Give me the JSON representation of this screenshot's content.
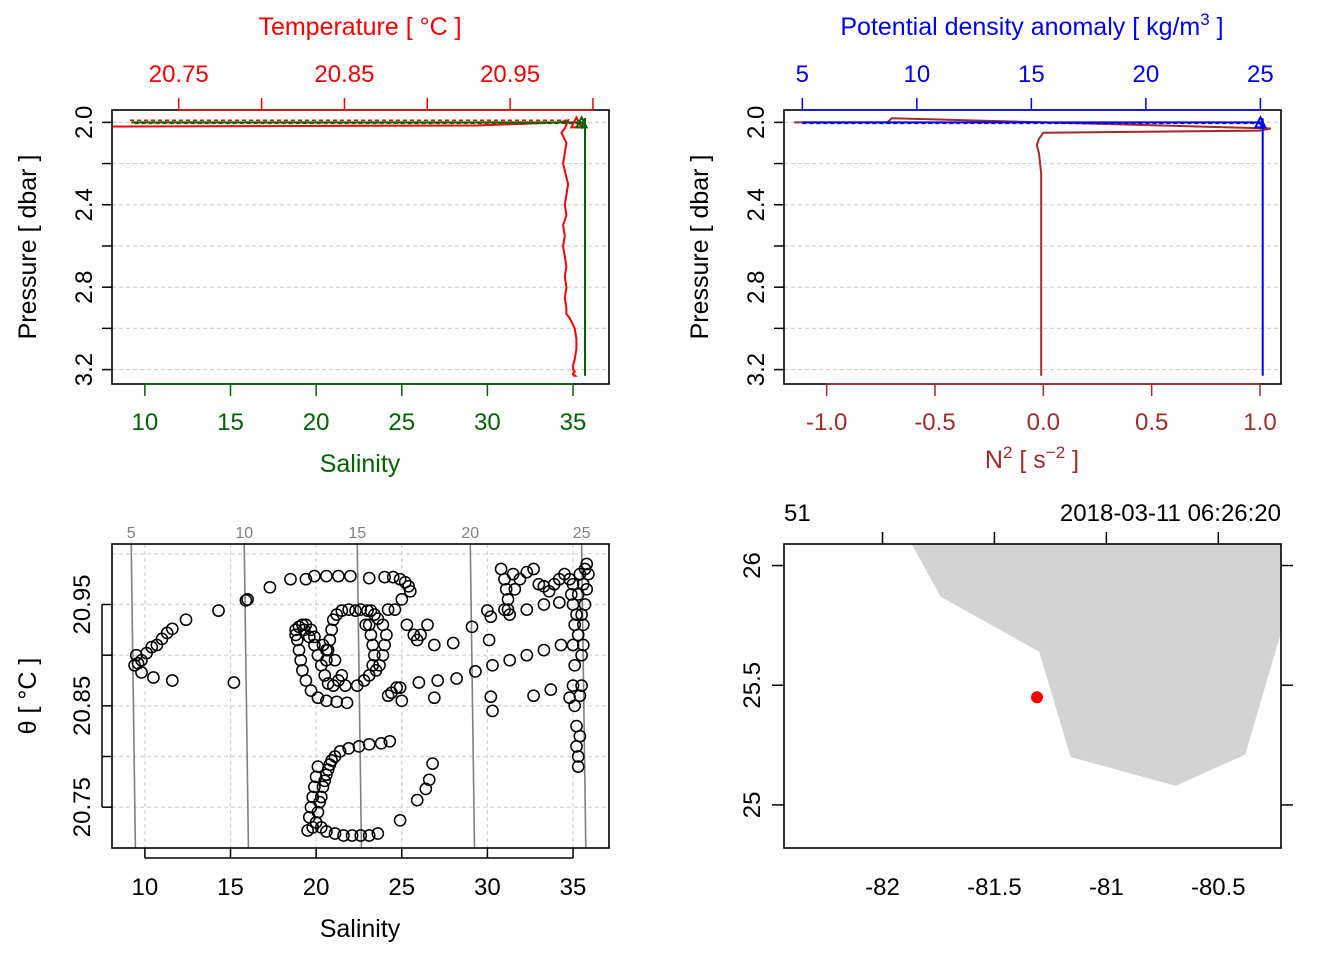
{
  "colors": {
    "temperature": "#ff0000",
    "salinity": "#006400",
    "density": "#0000ff",
    "n2": "#a52a2a",
    "grid": "#d3d3d3",
    "isopycnal": "#808080",
    "land": "#d3d3d3",
    "station": "#ff0000",
    "axis": "#000000"
  },
  "chart_data": [
    {
      "id": "ts_profile",
      "type": "line",
      "top_title": "Temperature [ °C ]",
      "top_ticks": [
        "20.75",
        "20.85",
        "20.95"
      ],
      "top_tick_values": [
        20.75,
        20.8,
        20.85,
        20.9,
        20.95,
        21.0
      ],
      "top_range": [
        20.7097,
        21.0097
      ],
      "ylabel": "Pressure [ dbar ]",
      "yticks": [
        "2.0",
        "2.4",
        "2.8",
        "3.2"
      ],
      "ytick_values": [
        2.0,
        2.4,
        2.8,
        3.2
      ],
      "ylim": [
        1.94,
        3.27
      ],
      "bottom_ticks": [
        "10",
        "15",
        "20",
        "25",
        "30",
        "35"
      ],
      "bottom_tick_values": [
        10,
        15,
        20,
        25,
        30,
        35
      ],
      "xlim_salinity": [
        8.08,
        37.1
      ],
      "xlabel": "Salinity",
      "series": [
        {
          "name": "Temperature",
          "x": [
            20.71,
            20.93,
            20.98,
            20.985,
            20.983,
            20.981,
            20.984,
            20.982,
            20.985,
            20.983,
            20.984,
            20.982,
            20.983,
            20.982,
            20.983,
            20.984,
            20.983,
            20.984,
            20.983,
            20.984,
            20.984,
            20.986,
            20.989,
            20.99,
            20.99,
            20.989,
            20.988,
            20.988,
            20.989,
            20.988,
            20.988,
            20.989,
            20.988,
            20.99
          ],
          "y": [
            2.02,
            2.015,
            2.0,
            1.99,
            2.03,
            2.05,
            2.1,
            2.2,
            2.3,
            2.4,
            2.45,
            2.5,
            2.55,
            2.6,
            2.65,
            2.7,
            2.75,
            2.8,
            2.85,
            2.9,
            2.93,
            2.95,
            3.0,
            3.05,
            3.1,
            3.15,
            3.18,
            3.2,
            3.21,
            3.22,
            3.225,
            3.23,
            3.23,
            3.23
          ]
        },
        {
          "name": "Salinity",
          "x": [
            9.2,
            35.5,
            35.4,
            35.6,
            35.5,
            35.7,
            35.7,
            35.7,
            35.7,
            35.7
          ],
          "y": [
            2.0,
            2.0,
            2.01,
            2.02,
            2.03,
            1.98,
            2.1,
            2.5,
            3.0,
            3.23
          ]
        }
      ]
    },
    {
      "id": "density_n2_profile",
      "type": "line",
      "top_title": "Potential density anomaly [ kg/m",
      "top_title_sup": "3",
      "top_title_end": " ]",
      "top_ticks": [
        "5",
        "10",
        "15",
        "20",
        "25"
      ],
      "top_tick_values": [
        5,
        10,
        15,
        20,
        25
      ],
      "top_range": [
        4.2,
        25.9
      ],
      "ylabel": "Pressure [ dbar ]",
      "yticks": [
        "2.0",
        "2.4",
        "2.8",
        "3.2"
      ],
      "ytick_values": [
        2.0,
        2.4,
        2.8,
        3.2
      ],
      "ylim": [
        1.94,
        3.27
      ],
      "bottom_ticks": [
        "-1.0",
        "-0.5",
        "0.0",
        "0.5",
        "1.0"
      ],
      "bottom_tick_values": [
        -1.0,
        -0.5,
        0.0,
        0.5,
        1.0
      ],
      "xlim_n2": [
        -1.197,
        1.097
      ],
      "xlabel_main": "N",
      "xlabel_sup": "2",
      "xlabel_unit": " [ s",
      "xlabel_unit_sup": "−2",
      "xlabel_end": " ]",
      "series": [
        {
          "name": "N2",
          "x": [
            -1.15,
            -0.72,
            -0.7,
            1.05,
            1.0,
            0.0,
            -0.02,
            -0.03,
            -0.02,
            -0.015,
            -0.01,
            -0.01,
            -0.01,
            -0.01
          ],
          "y": [
            2.0,
            2.0,
            1.98,
            2.03,
            2.04,
            2.05,
            2.08,
            2.11,
            2.15,
            2.2,
            2.25,
            2.5,
            3.0,
            3.23
          ]
        },
        {
          "name": "Potential density anomaly",
          "x": [
            5.0,
            25.0,
            25.0,
            25.1,
            25.05,
            25.1,
            25.1,
            25.1,
            25.1
          ],
          "y": [
            2.0,
            2.0,
            2.01,
            2.02,
            2.03,
            1.98,
            2.4,
            2.8,
            3.23
          ]
        }
      ]
    },
    {
      "id": "ts_diagram",
      "type": "scatter",
      "ylabel": "θ [ °C ]",
      "yticks": [
        "20.75",
        "20.85",
        "20.95"
      ],
      "ytick_values": [
        20.75,
        20.85,
        20.95
      ],
      "ylim": [
        20.7097,
        21.0097
      ],
      "xlabel": "Salinity",
      "xticks": [
        "10",
        "15",
        "20",
        "25",
        "30",
        "35"
      ],
      "xtick_values": [
        10,
        15,
        20,
        25,
        30,
        35
      ],
      "xlim": [
        8.08,
        37.1
      ],
      "isopycnal_labels": [
        "5",
        "10",
        "15",
        "20",
        "25"
      ],
      "isopycnal_values": [
        5,
        10,
        15,
        20,
        25
      ],
      "isopycnal_slope": 0.082,
      "isopycnal_salinity_at_top": [
        9.2,
        15.8,
        22.4,
        29.0,
        35.5
      ],
      "points": [
        [
          9.4,
          20.89
        ],
        [
          9.5,
          20.9
        ],
        [
          9.6,
          20.892
        ],
        [
          9.8,
          20.895
        ],
        [
          10.1,
          20.902
        ],
        [
          10.4,
          20.908
        ],
        [
          10.7,
          20.91
        ],
        [
          11.0,
          20.916
        ],
        [
          11.3,
          20.922
        ],
        [
          11.6,
          20.926
        ],
        [
          12.4,
          20.935
        ],
        [
          14.3,
          20.944
        ],
        [
          15.9,
          20.954
        ],
        [
          16.0,
          20.955
        ],
        [
          17.3,
          20.967
        ],
        [
          18.5,
          20.975
        ],
        [
          9.8,
          20.883
        ],
        [
          10.5,
          20.878
        ],
        [
          11.6,
          20.875
        ],
        [
          15.2,
          20.873
        ],
        [
          18.8,
          20.92
        ],
        [
          18.9,
          20.915
        ],
        [
          19.0,
          20.905
        ],
        [
          19.1,
          20.895
        ],
        [
          19.2,
          20.885
        ],
        [
          19.4,
          20.875
        ],
        [
          19.7,
          20.865
        ],
        [
          20.1,
          20.858
        ],
        [
          20.6,
          20.855
        ],
        [
          21.2,
          20.854
        ],
        [
          21.8,
          20.853
        ],
        [
          18.8,
          20.925
        ],
        [
          19.0,
          20.928
        ],
        [
          19.3,
          20.925
        ],
        [
          19.6,
          20.918
        ],
        [
          19.9,
          20.91
        ],
        [
          20.1,
          20.9
        ],
        [
          20.3,
          20.89
        ],
        [
          20.5,
          20.88
        ],
        [
          20.7,
          20.872
        ],
        [
          21.0,
          20.87
        ],
        [
          21.3,
          20.875
        ],
        [
          19.2,
          20.93
        ],
        [
          19.4,
          20.93
        ],
        [
          19.7,
          20.925
        ],
        [
          19.9,
          20.918
        ],
        [
          20.4,
          20.91
        ],
        [
          20.6,
          20.905
        ],
        [
          21.1,
          20.895
        ],
        [
          21.5,
          20.88
        ],
        [
          20.6,
          20.895
        ],
        [
          20.7,
          20.905
        ],
        [
          20.8,
          20.915
        ],
        [
          20.9,
          20.925
        ],
        [
          21.0,
          20.935
        ],
        [
          21.2,
          20.94
        ],
        [
          21.5,
          20.944
        ],
        [
          21.9,
          20.945
        ],
        [
          22.3,
          20.944
        ],
        [
          22.6,
          20.945
        ],
        [
          22.9,
          20.93
        ],
        [
          19.4,
          20.975
        ],
        [
          19.9,
          20.978
        ],
        [
          20.6,
          20.978
        ],
        [
          21.3,
          20.978
        ],
        [
          22.0,
          20.978
        ],
        [
          23.1,
          20.976
        ],
        [
          24.0,
          20.977
        ],
        [
          24.5,
          20.977
        ],
        [
          24.9,
          20.975
        ],
        [
          25.2,
          20.972
        ],
        [
          25.4,
          20.968
        ],
        [
          25.5,
          20.963
        ],
        [
          23.1,
          20.93
        ],
        [
          23.2,
          20.92
        ],
        [
          23.3,
          20.91
        ],
        [
          23.4,
          20.9
        ],
        [
          23.3,
          20.89
        ],
        [
          23.5,
          20.885
        ],
        [
          23.7,
          20.89
        ],
        [
          23.9,
          20.9
        ],
        [
          24.0,
          20.91
        ],
        [
          24.1,
          20.92
        ],
        [
          23.9,
          20.93
        ],
        [
          23.6,
          20.936
        ],
        [
          23.4,
          20.94
        ],
        [
          23.2,
          20.944
        ],
        [
          23.0,
          20.944
        ],
        [
          22.4,
          20.87
        ],
        [
          22.8,
          20.875
        ],
        [
          23.1,
          20.88
        ],
        [
          24.2,
          20.945
        ],
        [
          24.6,
          20.945
        ],
        [
          25.0,
          20.955
        ],
        [
          25.3,
          20.93
        ],
        [
          25.7,
          20.92
        ],
        [
          25.9,
          20.915
        ],
        [
          26.1,
          20.92
        ],
        [
          26.5,
          20.93
        ],
        [
          24.2,
          20.86
        ],
        [
          24.4,
          20.863
        ],
        [
          24.7,
          20.868
        ],
        [
          25.0,
          20.855
        ],
        [
          21.7,
          20.87
        ],
        [
          24.9,
          20.868
        ],
        [
          26.0,
          20.873
        ],
        [
          27.1,
          20.875
        ],
        [
          28.2,
          20.877
        ],
        [
          29.3,
          20.884
        ],
        [
          30.3,
          20.89
        ],
        [
          31.3,
          20.895
        ],
        [
          32.3,
          20.9
        ],
        [
          33.3,
          20.905
        ],
        [
          34.3,
          20.91
        ],
        [
          26.9,
          20.91
        ],
        [
          28.0,
          20.912
        ],
        [
          29.1,
          20.928
        ],
        [
          30.2,
          20.938
        ],
        [
          31.2,
          20.945
        ],
        [
          32.3,
          20.945
        ],
        [
          33.3,
          20.95
        ],
        [
          34.2,
          20.952
        ],
        [
          30.2,
          20.859
        ],
        [
          30.3,
          20.845
        ],
        [
          32.7,
          20.86
        ],
        [
          33.7,
          20.866
        ],
        [
          34.8,
          20.858
        ],
        [
          26.9,
          20.858
        ],
        [
          19.5,
          20.727
        ],
        [
          19.8,
          20.73
        ],
        [
          20.0,
          20.735
        ],
        [
          20.1,
          20.745
        ],
        [
          20.2,
          20.755
        ],
        [
          20.3,
          20.76
        ],
        [
          20.4,
          20.77
        ],
        [
          20.5,
          20.776
        ],
        [
          20.6,
          20.782
        ],
        [
          20.7,
          20.787
        ],
        [
          20.8,
          20.792
        ],
        [
          20.9,
          20.796
        ],
        [
          21.1,
          20.8
        ],
        [
          21.4,
          20.805
        ],
        [
          21.9,
          20.808
        ],
        [
          22.5,
          20.81
        ],
        [
          23.1,
          20.812
        ],
        [
          23.8,
          20.813
        ],
        [
          24.3,
          20.815
        ],
        [
          20.3,
          20.73
        ],
        [
          20.6,
          20.726
        ],
        [
          21.1,
          20.724
        ],
        [
          21.6,
          20.722
        ],
        [
          22.1,
          20.722
        ],
        [
          22.6,
          20.722
        ],
        [
          23.1,
          20.722
        ],
        [
          23.6,
          20.724
        ],
        [
          24.9,
          20.737
        ],
        [
          25.9,
          20.757
        ],
        [
          26.4,
          20.768
        ],
        [
          26.6,
          20.777
        ],
        [
          26.8,
          20.793
        ],
        [
          19.6,
          20.74
        ],
        [
          19.7,
          20.75
        ],
        [
          19.8,
          20.76
        ],
        [
          19.9,
          20.77
        ],
        [
          20.0,
          20.78
        ],
        [
          20.1,
          20.79
        ],
        [
          30.8,
          20.985
        ],
        [
          31.0,
          20.975
        ],
        [
          31.1,
          20.965
        ],
        [
          31.2,
          20.955
        ],
        [
          31.0,
          20.945
        ],
        [
          31.3,
          20.94
        ],
        [
          31.5,
          20.98
        ],
        [
          31.6,
          20.965
        ],
        [
          31.9,
          20.975
        ],
        [
          32.3,
          20.982
        ],
        [
          32.7,
          20.985
        ],
        [
          33.0,
          20.97
        ],
        [
          33.3,
          20.968
        ],
        [
          33.6,
          20.963
        ],
        [
          33.9,
          20.97
        ],
        [
          34.2,
          20.975
        ],
        [
          34.5,
          20.98
        ],
        [
          30.0,
          20.944
        ],
        [
          30.1,
          20.915
        ],
        [
          35.0,
          20.97
        ],
        [
          35.0,
          20.95
        ],
        [
          35.1,
          20.93
        ],
        [
          35.0,
          20.91
        ],
        [
          35.1,
          20.89
        ],
        [
          35.0,
          20.87
        ],
        [
          35.1,
          20.85
        ],
        [
          35.2,
          20.83
        ],
        [
          35.2,
          20.81
        ],
        [
          35.3,
          20.79
        ],
        [
          35.3,
          20.8
        ],
        [
          35.4,
          20.82
        ],
        [
          35.4,
          20.86
        ],
        [
          35.5,
          20.9
        ],
        [
          35.5,
          20.94
        ],
        [
          35.6,
          20.97
        ],
        [
          35.7,
          20.985
        ],
        [
          35.8,
          20.99
        ],
        [
          35.3,
          20.96
        ],
        [
          35.4,
          20.98
        ],
        [
          35.6,
          20.93
        ],
        [
          35.7,
          20.95
        ],
        [
          35.8,
          20.965
        ],
        [
          35.2,
          20.94
        ],
        [
          35.3,
          20.92
        ],
        [
          35.5,
          20.87
        ],
        [
          35.6,
          20.91
        ],
        [
          34.9,
          20.96
        ],
        [
          34.8,
          20.975
        ],
        [
          35.9,
          20.98
        ]
      ]
    },
    {
      "id": "station_map",
      "type": "map",
      "station_label": "51",
      "datetime_label": "2018-03-11 06:26:20",
      "xticks": [
        "-82",
        "-81.5",
        "-81",
        "-80.5"
      ],
      "xtick_values": [
        -82,
        -81.5,
        -81,
        -80.5
      ],
      "xlim": [
        -82.44,
        -80.22
      ],
      "yticks": [
        "26",
        "25.5",
        "25"
      ],
      "ytick_values": [
        26,
        25.5,
        25
      ],
      "ylim": [
        24.82,
        26.09
      ],
      "land_lon": [
        -81.87,
        -81.74,
        -81.3,
        -81.16,
        -80.69,
        -80.38,
        -80.22,
        -80.22
      ],
      "land_lat": [
        26.09,
        25.87,
        25.64,
        25.2,
        25.08,
        25.21,
        25.72,
        26.09
      ],
      "station": {
        "lon": -81.31,
        "lat": 25.45
      }
    }
  ]
}
